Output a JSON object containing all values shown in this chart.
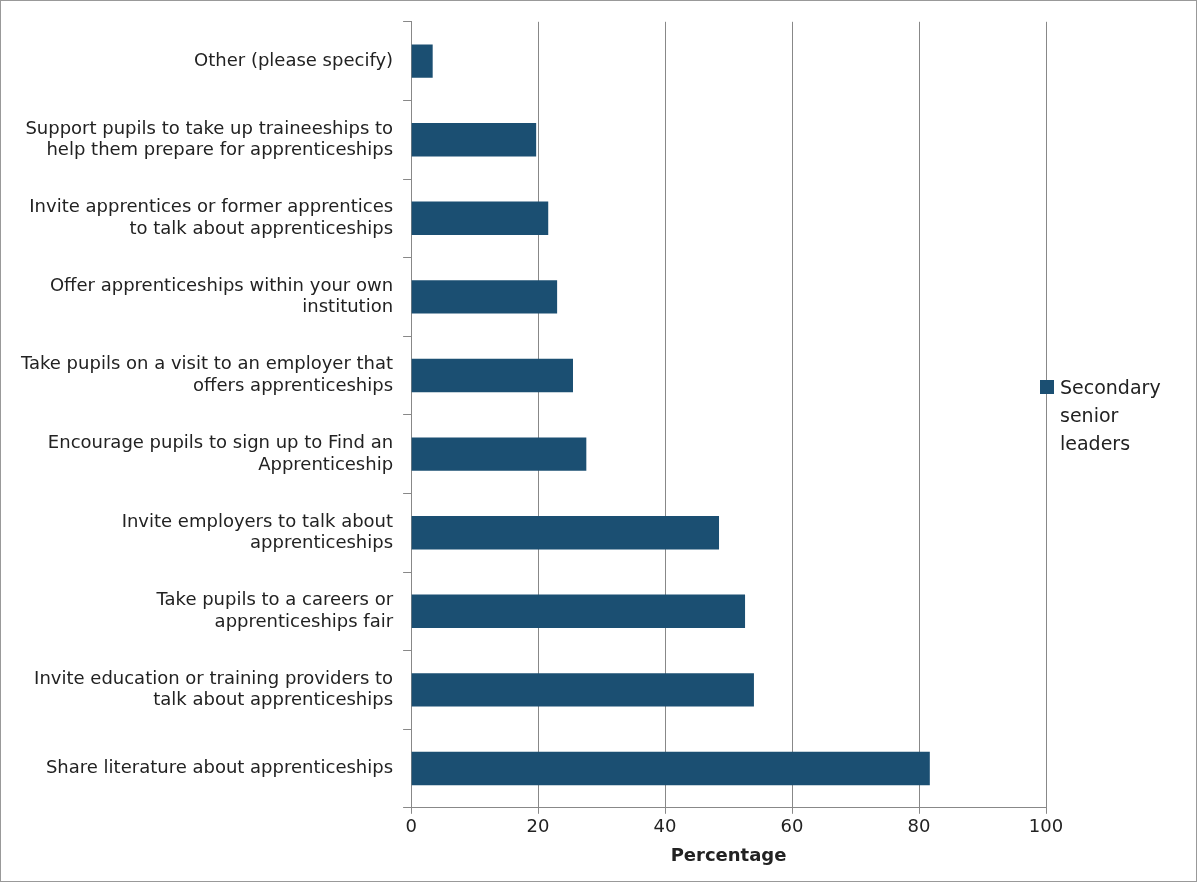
{
  "chart_data": {
    "type": "bar",
    "orientation": "horizontal",
    "xlabel": "Percentage",
    "categories": [
      "Other (please specify)",
      "Support pupils to take up traineeships to help them prepare for apprenticeships",
      "Invite apprentices or former apprentices to talk about apprenticeships",
      "Offer apprenticeships within your own institution",
      "Take pupils on a visit to an employer that offers apprenticeships",
      "Encourage pupils to sign up to Find an Apprenticeship",
      "Invite employers to talk about apprenticeships",
      "Take pupils to a careers or apprenticeships fair",
      "Invite education or training providers to talk about apprenticeships",
      "Share literature about apprenticeships"
    ],
    "series": [
      {
        "name": "Secondary senior leaders",
        "color": "#1b4f72",
        "values": [
          3.4,
          19.7,
          21.6,
          23,
          25.5,
          27.6,
          48.5,
          52.6,
          54,
          81.7
        ]
      }
    ],
    "xlim": [
      0,
      100
    ],
    "xticks": [
      0,
      20,
      40,
      60,
      80,
      100
    ],
    "grid": "x",
    "legend": "right"
  }
}
